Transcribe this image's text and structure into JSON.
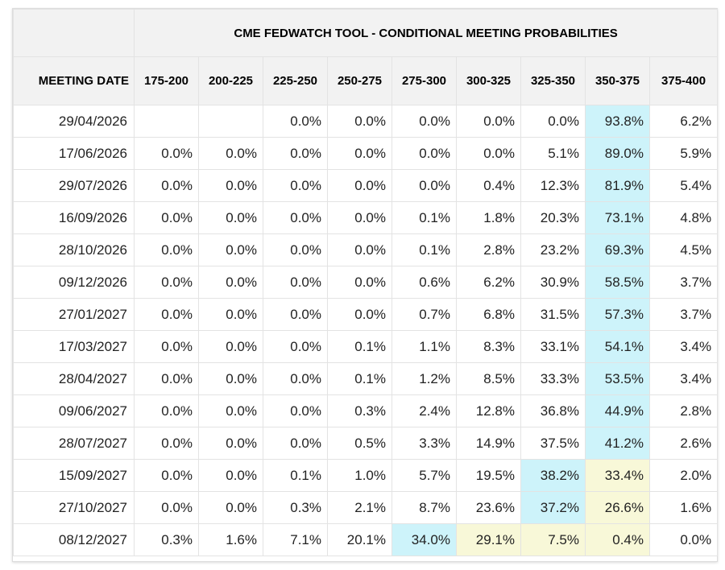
{
  "title": "CME FEDWATCH TOOL - CONDITIONAL MEETING PROBABILITIES",
  "colors": {
    "header_bg": "#f2f2f2",
    "highlight_blue": "#cdf3fa",
    "highlight_yellow": "#f8f8d8"
  },
  "header": {
    "date_label": "MEETING DATE",
    "bins": [
      "175-200",
      "200-225",
      "225-250",
      "250-275",
      "275-300",
      "300-325",
      "325-350",
      "350-375",
      "375-400"
    ]
  },
  "rows": [
    {
      "date": "29/04/2026",
      "values": [
        "",
        "",
        "0.0%",
        "0.0%",
        "0.0%",
        "0.0%",
        "0.0%",
        "93.8%",
        "6.2%"
      ],
      "highlights": {
        "7": "blue"
      }
    },
    {
      "date": "17/06/2026",
      "values": [
        "0.0%",
        "0.0%",
        "0.0%",
        "0.0%",
        "0.0%",
        "0.0%",
        "5.1%",
        "89.0%",
        "5.9%"
      ],
      "highlights": {
        "7": "blue"
      }
    },
    {
      "date": "29/07/2026",
      "values": [
        "0.0%",
        "0.0%",
        "0.0%",
        "0.0%",
        "0.0%",
        "0.4%",
        "12.3%",
        "81.9%",
        "5.4%"
      ],
      "highlights": {
        "7": "blue"
      }
    },
    {
      "date": "16/09/2026",
      "values": [
        "0.0%",
        "0.0%",
        "0.0%",
        "0.0%",
        "0.1%",
        "1.8%",
        "20.3%",
        "73.1%",
        "4.8%"
      ],
      "highlights": {
        "7": "blue"
      }
    },
    {
      "date": "28/10/2026",
      "values": [
        "0.0%",
        "0.0%",
        "0.0%",
        "0.0%",
        "0.1%",
        "2.8%",
        "23.2%",
        "69.3%",
        "4.5%"
      ],
      "highlights": {
        "7": "blue"
      }
    },
    {
      "date": "09/12/2026",
      "values": [
        "0.0%",
        "0.0%",
        "0.0%",
        "0.0%",
        "0.6%",
        "6.2%",
        "30.9%",
        "58.5%",
        "3.7%"
      ],
      "highlights": {
        "7": "blue"
      }
    },
    {
      "date": "27/01/2027",
      "values": [
        "0.0%",
        "0.0%",
        "0.0%",
        "0.0%",
        "0.7%",
        "6.8%",
        "31.5%",
        "57.3%",
        "3.7%"
      ],
      "highlights": {
        "7": "blue"
      }
    },
    {
      "date": "17/03/2027",
      "values": [
        "0.0%",
        "0.0%",
        "0.0%",
        "0.1%",
        "1.1%",
        "8.3%",
        "33.1%",
        "54.1%",
        "3.4%"
      ],
      "highlights": {
        "7": "blue"
      }
    },
    {
      "date": "28/04/2027",
      "values": [
        "0.0%",
        "0.0%",
        "0.0%",
        "0.1%",
        "1.2%",
        "8.5%",
        "33.3%",
        "53.5%",
        "3.4%"
      ],
      "highlights": {
        "7": "blue"
      }
    },
    {
      "date": "09/06/2027",
      "values": [
        "0.0%",
        "0.0%",
        "0.0%",
        "0.3%",
        "2.4%",
        "12.8%",
        "36.8%",
        "44.9%",
        "2.8%"
      ],
      "highlights": {
        "7": "blue"
      }
    },
    {
      "date": "28/07/2027",
      "values": [
        "0.0%",
        "0.0%",
        "0.0%",
        "0.5%",
        "3.3%",
        "14.9%",
        "37.5%",
        "41.2%",
        "2.6%"
      ],
      "highlights": {
        "7": "blue"
      }
    },
    {
      "date": "15/09/2027",
      "values": [
        "0.0%",
        "0.0%",
        "0.1%",
        "1.0%",
        "5.7%",
        "19.5%",
        "38.2%",
        "33.4%",
        "2.0%"
      ],
      "highlights": {
        "6": "blue",
        "7": "yellow"
      }
    },
    {
      "date": "27/10/2027",
      "values": [
        "0.0%",
        "0.0%",
        "0.3%",
        "2.1%",
        "8.7%",
        "23.6%",
        "37.2%",
        "26.6%",
        "1.6%"
      ],
      "highlights": {
        "6": "blue",
        "7": "yellow"
      }
    },
    {
      "date": "08/12/2027",
      "values": [
        "0.3%",
        "1.6%",
        "7.1%",
        "20.1%",
        "34.0%",
        "29.1%",
        "7.5%",
        "0.4%",
        "0.0%"
      ],
      "highlights": {
        "4": "blue",
        "5": "yellow",
        "6": "yellow",
        "7": "yellow"
      }
    }
  ]
}
